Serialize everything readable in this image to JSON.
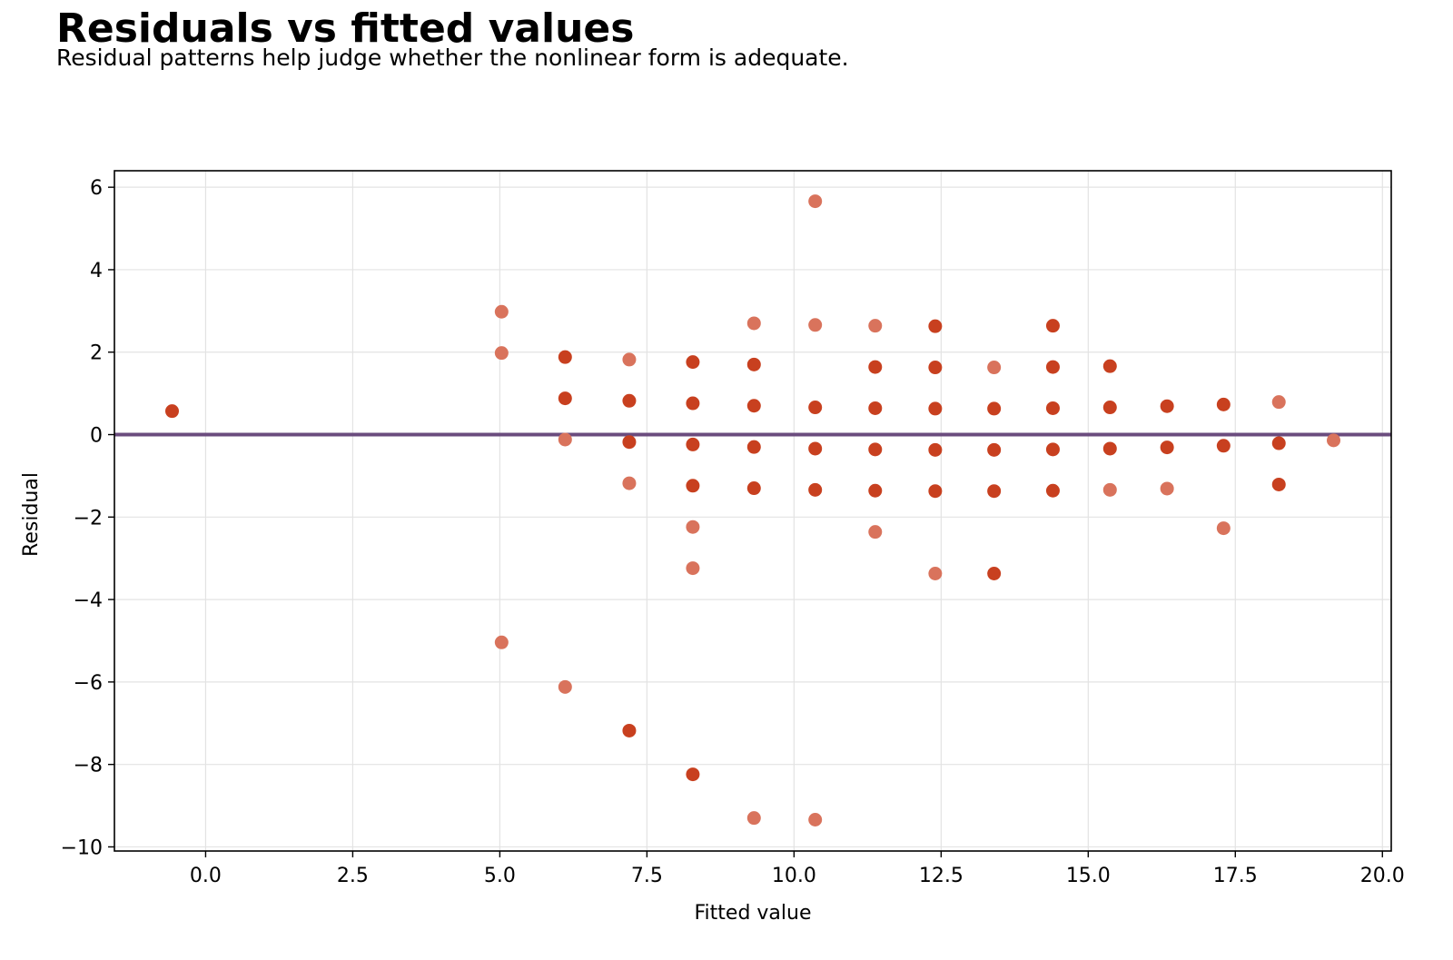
{
  "header": {
    "title": "Residuals vs fitted values",
    "subtitle": "Residual patterns help judge whether the nonlinear form is adequate."
  },
  "chart_data": {
    "type": "scatter",
    "title": "Residuals vs fitted values",
    "subtitle": "Residual patterns help judge whether the nonlinear form is adequate.",
    "xlabel": "Fitted value",
    "ylabel": "Residual",
    "xlim": [
      -1.55,
      20.15
    ],
    "ylim": [
      -10.1,
      6.4
    ],
    "xticks": [
      0.0,
      2.5,
      5.0,
      7.5,
      10.0,
      12.5,
      15.0,
      17.5,
      20.0
    ],
    "xtick_labels": [
      "0.0",
      "2.5",
      "5.0",
      "7.5",
      "10.0",
      "12.5",
      "15.0",
      "17.5",
      "20.0"
    ],
    "yticks": [
      6,
      4,
      2,
      0,
      -2,
      -4,
      -6,
      -8,
      -10
    ],
    "ytick_labels": [
      "6",
      "4",
      "2",
      "0",
      "−2",
      "−4",
      "−6",
      "−8",
      "−10"
    ],
    "grid": true,
    "reference_line": {
      "y": 0,
      "color": "#6b4c7e"
    },
    "colors": {
      "normal": "#c8401f",
      "outlier": "#d9735c"
    },
    "points": [
      [
        -0.57,
        0.57,
        "normal"
      ],
      [
        5.03,
        2.98,
        "outlier"
      ],
      [
        5.03,
        1.98,
        "outlier"
      ],
      [
        5.03,
        -5.04,
        "outlier"
      ],
      [
        6.11,
        1.88,
        "normal"
      ],
      [
        6.11,
        0.88,
        "normal"
      ],
      [
        6.11,
        -0.12,
        "outlier"
      ],
      [
        6.11,
        -6.12,
        "outlier"
      ],
      [
        7.2,
        1.82,
        "outlier"
      ],
      [
        7.2,
        0.82,
        "normal"
      ],
      [
        7.2,
        -0.18,
        "normal"
      ],
      [
        7.2,
        -1.18,
        "outlier"
      ],
      [
        7.2,
        -7.18,
        "normal"
      ],
      [
        8.28,
        1.76,
        "normal"
      ],
      [
        8.28,
        0.76,
        "normal"
      ],
      [
        8.28,
        -0.24,
        "normal"
      ],
      [
        8.28,
        -1.24,
        "normal"
      ],
      [
        8.28,
        -2.24,
        "outlier"
      ],
      [
        8.28,
        -3.24,
        "outlier"
      ],
      [
        8.28,
        -8.24,
        "normal"
      ],
      [
        9.32,
        2.7,
        "outlier"
      ],
      [
        9.32,
        1.7,
        "normal"
      ],
      [
        9.32,
        0.7,
        "normal"
      ],
      [
        9.32,
        -0.3,
        "normal"
      ],
      [
        9.32,
        -1.3,
        "normal"
      ],
      [
        9.32,
        -9.3,
        "outlier"
      ],
      [
        10.36,
        5.66,
        "outlier"
      ],
      [
        10.36,
        2.66,
        "outlier"
      ],
      [
        10.36,
        0.66,
        "normal"
      ],
      [
        10.36,
        -0.34,
        "normal"
      ],
      [
        10.36,
        -1.34,
        "normal"
      ],
      [
        10.36,
        -9.34,
        "outlier"
      ],
      [
        11.38,
        2.64,
        "outlier"
      ],
      [
        11.38,
        1.64,
        "normal"
      ],
      [
        11.38,
        0.64,
        "normal"
      ],
      [
        11.38,
        -0.36,
        "normal"
      ],
      [
        11.38,
        -1.36,
        "normal"
      ],
      [
        11.38,
        -2.36,
        "outlier"
      ],
      [
        12.4,
        2.63,
        "normal"
      ],
      [
        12.4,
        1.63,
        "normal"
      ],
      [
        12.4,
        0.63,
        "normal"
      ],
      [
        12.4,
        -0.37,
        "normal"
      ],
      [
        12.4,
        -1.37,
        "normal"
      ],
      [
        12.4,
        -3.37,
        "outlier"
      ],
      [
        13.4,
        1.63,
        "outlier"
      ],
      [
        13.4,
        0.63,
        "normal"
      ],
      [
        13.4,
        -0.37,
        "normal"
      ],
      [
        13.4,
        -1.37,
        "normal"
      ],
      [
        13.4,
        -3.37,
        "normal"
      ],
      [
        14.4,
        2.64,
        "normal"
      ],
      [
        14.4,
        1.64,
        "normal"
      ],
      [
        14.4,
        0.64,
        "normal"
      ],
      [
        14.4,
        -0.36,
        "normal"
      ],
      [
        14.4,
        -1.36,
        "normal"
      ],
      [
        15.37,
        1.66,
        "normal"
      ],
      [
        15.37,
        0.66,
        "normal"
      ],
      [
        15.37,
        -0.34,
        "normal"
      ],
      [
        15.37,
        -1.34,
        "outlier"
      ],
      [
        16.34,
        0.69,
        "normal"
      ],
      [
        16.34,
        -0.31,
        "normal"
      ],
      [
        16.34,
        -1.31,
        "outlier"
      ],
      [
        17.3,
        0.73,
        "normal"
      ],
      [
        17.3,
        -0.27,
        "normal"
      ],
      [
        17.3,
        -2.27,
        "outlier"
      ],
      [
        18.24,
        0.79,
        "outlier"
      ],
      [
        18.24,
        -0.21,
        "normal"
      ],
      [
        18.24,
        -1.21,
        "normal"
      ],
      [
        19.17,
        -0.14,
        "outlier"
      ]
    ]
  }
}
